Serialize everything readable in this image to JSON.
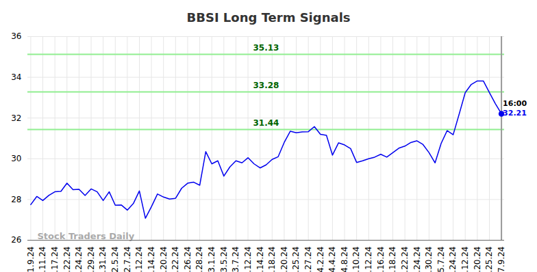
{
  "chart_data": {
    "type": "line",
    "title": "BBSI Long Term Signals",
    "categories": [
      "1.9.24",
      null,
      "1.11.24",
      null,
      "1.17.24",
      null,
      "1.22.24",
      null,
      "1.24.24",
      null,
      "1.29.24",
      null,
      "1.31.24",
      null,
      "2.5.24",
      null,
      "2.7.24",
      null,
      "2.12.24",
      null,
      "2.14.24",
      null,
      "2.20.24",
      null,
      "2.22.24",
      null,
      "2.26.24",
      null,
      "2.28.24",
      null,
      "3.1.24",
      null,
      "3.5.24",
      null,
      "3.7.24",
      null,
      "3.12.24",
      null,
      "3.14.24",
      null,
      "3.18.24",
      null,
      "3.20.24",
      null,
      "3.25.24",
      null,
      "3.27.24",
      null,
      "4.2.24",
      null,
      "4.4.24",
      null,
      "4.8.24",
      null,
      "4.10.24",
      null,
      "4.12.24",
      null,
      "4.16.24",
      null,
      "4.18.24",
      null,
      "4.22.24",
      null,
      "4.24.24",
      null,
      "4.30.24",
      null,
      "5.7.24",
      null,
      "5.24.24",
      null,
      "6.12.24",
      null,
      "6.20.24",
      null,
      "6.25.24",
      null,
      "7.9.24"
    ],
    "values": [
      27.75,
      28.15,
      27.95,
      28.2,
      28.38,
      28.4,
      28.8,
      28.48,
      28.5,
      28.2,
      28.52,
      28.38,
      27.95,
      28.38,
      27.72,
      27.73,
      27.48,
      27.8,
      28.42,
      27.08,
      27.65,
      28.27,
      28.12,
      28.02,
      28.06,
      28.55,
      28.8,
      28.85,
      28.7,
      30.35,
      29.75,
      29.9,
      29.15,
      29.6,
      29.9,
      29.8,
      30.05,
      29.75,
      29.55,
      29.7,
      29.97,
      30.1,
      30.8,
      31.35,
      31.28,
      31.32,
      31.33,
      31.58,
      31.2,
      31.15,
      30.18,
      30.78,
      30.68,
      30.5,
      29.82,
      29.9,
      30.0,
      30.08,
      30.22,
      30.08,
      30.3,
      30.52,
      30.62,
      30.8,
      30.88,
      30.7,
      30.3,
      29.8,
      30.75,
      31.38,
      31.18,
      32.2,
      33.25,
      33.65,
      33.82,
      33.82,
      33.25,
      32.7,
      32.21
    ],
    "color": "#0000ee",
    "levels": [
      35.13,
      33.28,
      31.44
    ],
    "last_time": "16:00",
    "watermark": "Stock Traders Daily",
    "ylim": [
      26,
      36
    ],
    "yticks": [
      26,
      28,
      30,
      32,
      34,
      36
    ],
    "grid": true
  }
}
